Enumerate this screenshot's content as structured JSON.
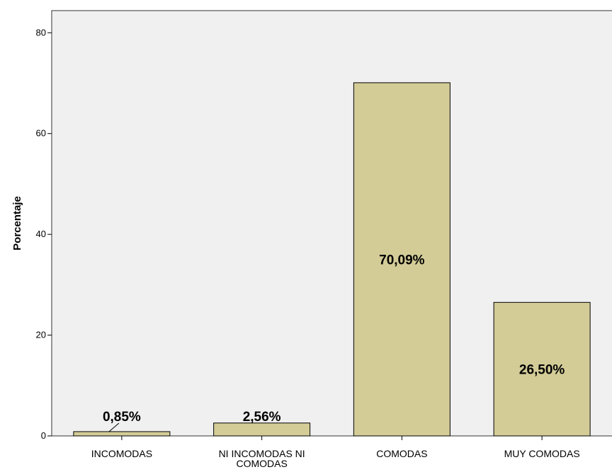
{
  "chart_data": {
    "type": "bar",
    "ylabel": "Porcentaje",
    "xlabel": "",
    "ylim": [
      0,
      84.4
    ],
    "yticks": [
      0,
      20,
      40,
      60,
      80
    ],
    "grid": false,
    "categories": [
      "INCOMODAS",
      "NI INCOMODAS NI COMODAS",
      "COMODAS",
      "MUY COMODAS"
    ],
    "category_lines": [
      [
        "INCOMODAS"
      ],
      [
        "NI INCOMODAS NI",
        "COMODAS"
      ],
      [
        "COMODAS"
      ],
      [
        "MUY COMODAS"
      ]
    ],
    "values": [
      0.85,
      2.56,
      70.09,
      26.5
    ],
    "data_labels": [
      "0,85%",
      "2,56%",
      "70,09%",
      "26,50%"
    ],
    "colors": {
      "bar": "#d3cc97",
      "plot_background": "#f0f0f0",
      "stroke": "#000000"
    }
  }
}
